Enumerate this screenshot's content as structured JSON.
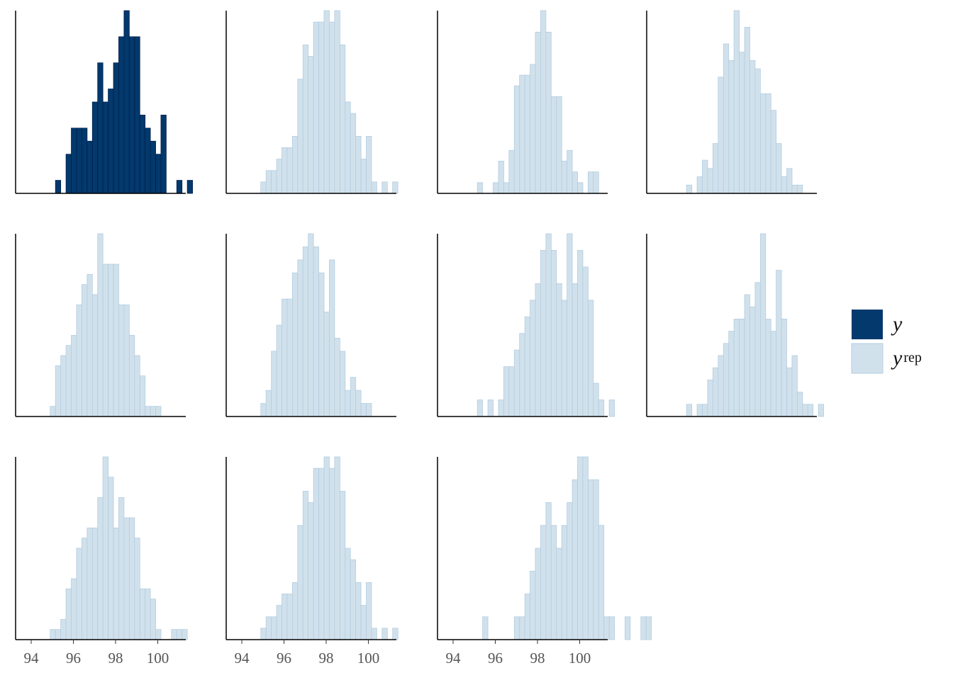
{
  "chart_data": {
    "type": "histogram-grid",
    "title": "",
    "xlabel": "",
    "ylabel": "",
    "xlim": [
      93.4,
      101.4
    ],
    "bin_start": 94.9,
    "bin_width": 0.25,
    "x_ticks": [
      "94",
      "96",
      "98",
      "100"
    ],
    "y_axis_shown": false,
    "colors": {
      "y_fill": "#03396c",
      "y_edge": "#011f4b",
      "yrep_fill": "#d1e1ec",
      "yrep_edge": "#b3cde0",
      "axis": "#000000"
    },
    "legend": [
      {
        "key": "y",
        "symbol": "y",
        "sub": ""
      },
      {
        "key": "yrep",
        "symbol": "y",
        "sub": "rep"
      }
    ],
    "panels": [
      {
        "series": "y",
        "x_ticks_shown": false,
        "counts": [
          0,
          1,
          0,
          3,
          5,
          5,
          5,
          4,
          7,
          10,
          7,
          8,
          10,
          12,
          14,
          12,
          12,
          6,
          5,
          4,
          3,
          6,
          0,
          0,
          1,
          0,
          1
        ]
      },
      {
        "series": "yrep",
        "x_ticks_shown": false,
        "counts": [
          1,
          2,
          2,
          3,
          4,
          4,
          5,
          10,
          13,
          12,
          15,
          15,
          16,
          15,
          16,
          13,
          8,
          7,
          5,
          3,
          5,
          1,
          0,
          1,
          0,
          1
        ]
      },
      {
        "series": "yrep",
        "x_ticks_shown": false,
        "counts": [
          0,
          1,
          0,
          0,
          1,
          3,
          1,
          4,
          10,
          11,
          11,
          12,
          15,
          17,
          15,
          9,
          9,
          3,
          4,
          2,
          1,
          0,
          2,
          2
        ]
      },
      {
        "series": "yrep",
        "x_ticks_shown": false,
        "counts": [
          0,
          1,
          0,
          2,
          4,
          3,
          6,
          14,
          18,
          16,
          22,
          17,
          20,
          16,
          15,
          12,
          12,
          10,
          6,
          2,
          3,
          1,
          1
        ]
      },
      {
        "series": "yrep",
        "x_ticks_shown": false,
        "counts": [
          1,
          5,
          6,
          7,
          8,
          11,
          13,
          14,
          12,
          18,
          15,
          15,
          15,
          11,
          11,
          8,
          6,
          4,
          1,
          1,
          1
        ]
      },
      {
        "series": "yrep",
        "x_ticks_shown": false,
        "counts": [
          1,
          2,
          5,
          7,
          9,
          9,
          11,
          12,
          13,
          14,
          13,
          11,
          8,
          12,
          6,
          5,
          2,
          3,
          2,
          1,
          1
        ]
      },
      {
        "series": "yrep",
        "x_ticks_shown": false,
        "counts": [
          0,
          1,
          0,
          1,
          0,
          1,
          3,
          3,
          4,
          5,
          6,
          7,
          8,
          10,
          11,
          10,
          8,
          7,
          11,
          8,
          10,
          9,
          7,
          2,
          1,
          0,
          1
        ]
      },
      {
        "series": "yrep",
        "x_ticks_shown": false,
        "counts": [
          0,
          1,
          0,
          1,
          1,
          3,
          4,
          5,
          6,
          7,
          8,
          8,
          10,
          9,
          11,
          15,
          8,
          7,
          12,
          8,
          4,
          5,
          2,
          1,
          1,
          0,
          1
        ]
      },
      {
        "series": "yrep",
        "x_ticks_shown": true,
        "counts": [
          1,
          1,
          2,
          5,
          6,
          9,
          10,
          11,
          11,
          14,
          18,
          16,
          11,
          14,
          12,
          12,
          10,
          5,
          5,
          4,
          1,
          0,
          0,
          1,
          1,
          1
        ]
      },
      {
        "series": "yrep",
        "x_ticks_shown": true,
        "counts": [
          1,
          2,
          2,
          3,
          4,
          4,
          5,
          10,
          13,
          12,
          15,
          15,
          16,
          15,
          16,
          13,
          8,
          7,
          5,
          3,
          5,
          1,
          0,
          1,
          0,
          1
        ]
      },
      {
        "series": "yrep",
        "x_ticks_shown": true,
        "counts": [
          0,
          0,
          1,
          0,
          0,
          0,
          0,
          0,
          1,
          1,
          2,
          3,
          4,
          5,
          6,
          5,
          4,
          5,
          6,
          7,
          8,
          8,
          7,
          7,
          5,
          1,
          1,
          0,
          0,
          1,
          0,
          0,
          1,
          1
        ]
      }
    ]
  }
}
